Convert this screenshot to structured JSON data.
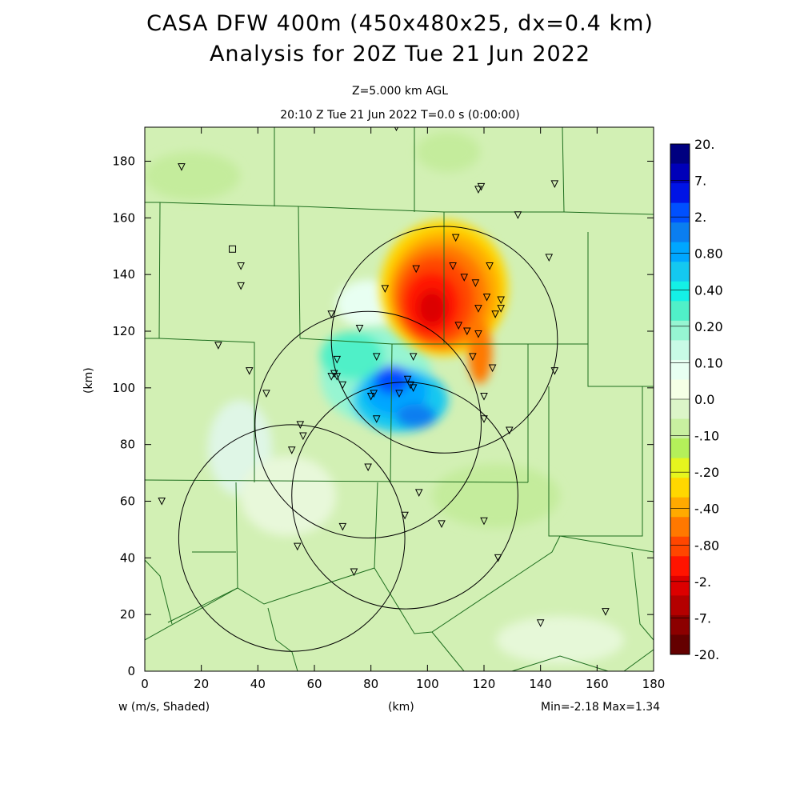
{
  "title": {
    "line1": "CASA DFW 400m (450x480x25, dx=0.4 km)",
    "line2": "Analysis for 20Z Tue 21 Jun 2022"
  },
  "subtitle": {
    "level": "Z=5.000 km AGL",
    "time": "20:10 Z Tue 21 Jun 2022    T=0.0 s (0:00:00)"
  },
  "axes": {
    "xlabel": "(km)",
    "ylabel": "(km)",
    "x_ticks": [
      0,
      20,
      40,
      60,
      80,
      100,
      120,
      140,
      160,
      180
    ],
    "y_ticks": [
      0,
      20,
      40,
      60,
      80,
      100,
      120,
      140,
      160,
      180
    ],
    "xlim": [
      0,
      180
    ],
    "ylim": [
      0,
      192
    ]
  },
  "field_label": "w (m/s, Shaded)",
  "stats": "Min=-2.18 Max=1.34",
  "colorbar": {
    "labels": [
      "20.",
      "7.",
      "2.",
      "0.80",
      "0.40",
      "0.20",
      "0.10",
      "0.0",
      "-.10",
      "-.20",
      "-.40",
      "-.80",
      "-2.",
      "-7.",
      "-20."
    ],
    "colors": [
      "#000080",
      "#0000b8",
      "#0014e6",
      "#0050ff",
      "#0a7ef0",
      "#00a6ff",
      "#14c8f0",
      "#14f0e6",
      "#50f0c8",
      "#96f5d2",
      "#c8fae6",
      "#e8fff2",
      "#f5ffe6",
      "#dcf5c8",
      "#c8f0a0",
      "#b4f05a",
      "#e6f51e",
      "#ffd700",
      "#ffaa00",
      "#ff7800",
      "#ff4600",
      "#ff1400",
      "#dc0000",
      "#b40000",
      "#8c0000",
      "#640000"
    ]
  },
  "background_color": "#d2f0b4",
  "radar_circles_km": [
    {
      "cx": 106,
      "cy": 117,
      "r": 40
    },
    {
      "cx": 79,
      "cy": 87,
      "r": 40
    },
    {
      "cx": 92,
      "cy": 62,
      "r": 40
    },
    {
      "cx": 52,
      "cy": 47,
      "r": 40
    }
  ],
  "station_marker_square_km": [
    31,
    149
  ],
  "stations_km": [
    [
      13,
      178
    ],
    [
      89,
      192
    ],
    [
      118,
      170
    ],
    [
      119,
      171
    ],
    [
      145,
      172
    ],
    [
      132,
      161
    ],
    [
      110,
      153
    ],
    [
      122,
      143
    ],
    [
      143,
      146
    ],
    [
      109,
      143
    ],
    [
      96,
      142
    ],
    [
      34,
      143
    ],
    [
      113,
      139
    ],
    [
      117,
      137
    ],
    [
      34,
      136
    ],
    [
      85,
      135
    ],
    [
      121,
      132
    ],
    [
      126,
      131
    ],
    [
      126,
      128
    ],
    [
      118,
      128
    ],
    [
      124,
      126
    ],
    [
      66,
      126
    ],
    [
      111,
      122
    ],
    [
      114,
      120
    ],
    [
      118,
      119
    ],
    [
      76,
      121
    ],
    [
      26,
      115
    ],
    [
      82,
      111
    ],
    [
      95,
      111
    ],
    [
      116,
      111
    ],
    [
      123,
      107
    ],
    [
      145,
      106
    ],
    [
      37,
      106
    ],
    [
      68,
      110
    ],
    [
      67,
      105
    ],
    [
      68,
      104
    ],
    [
      66,
      104
    ],
    [
      70,
      101
    ],
    [
      93,
      103
    ],
    [
      94,
      101
    ],
    [
      95,
      100
    ],
    [
      43,
      98
    ],
    [
      81,
      98
    ],
    [
      80,
      97
    ],
    [
      90,
      98
    ],
    [
      120,
      97
    ],
    [
      82,
      89
    ],
    [
      120,
      89
    ],
    [
      129,
      85
    ],
    [
      55,
      87
    ],
    [
      56,
      83
    ],
    [
      52,
      78
    ],
    [
      79,
      72
    ],
    [
      97,
      63
    ],
    [
      6,
      60
    ],
    [
      92,
      55
    ],
    [
      120,
      53
    ],
    [
      70,
      51
    ],
    [
      105,
      52
    ],
    [
      54,
      44
    ],
    [
      125,
      40
    ],
    [
      74,
      35
    ],
    [
      140,
      17
    ],
    [
      163,
      21
    ]
  ]
}
